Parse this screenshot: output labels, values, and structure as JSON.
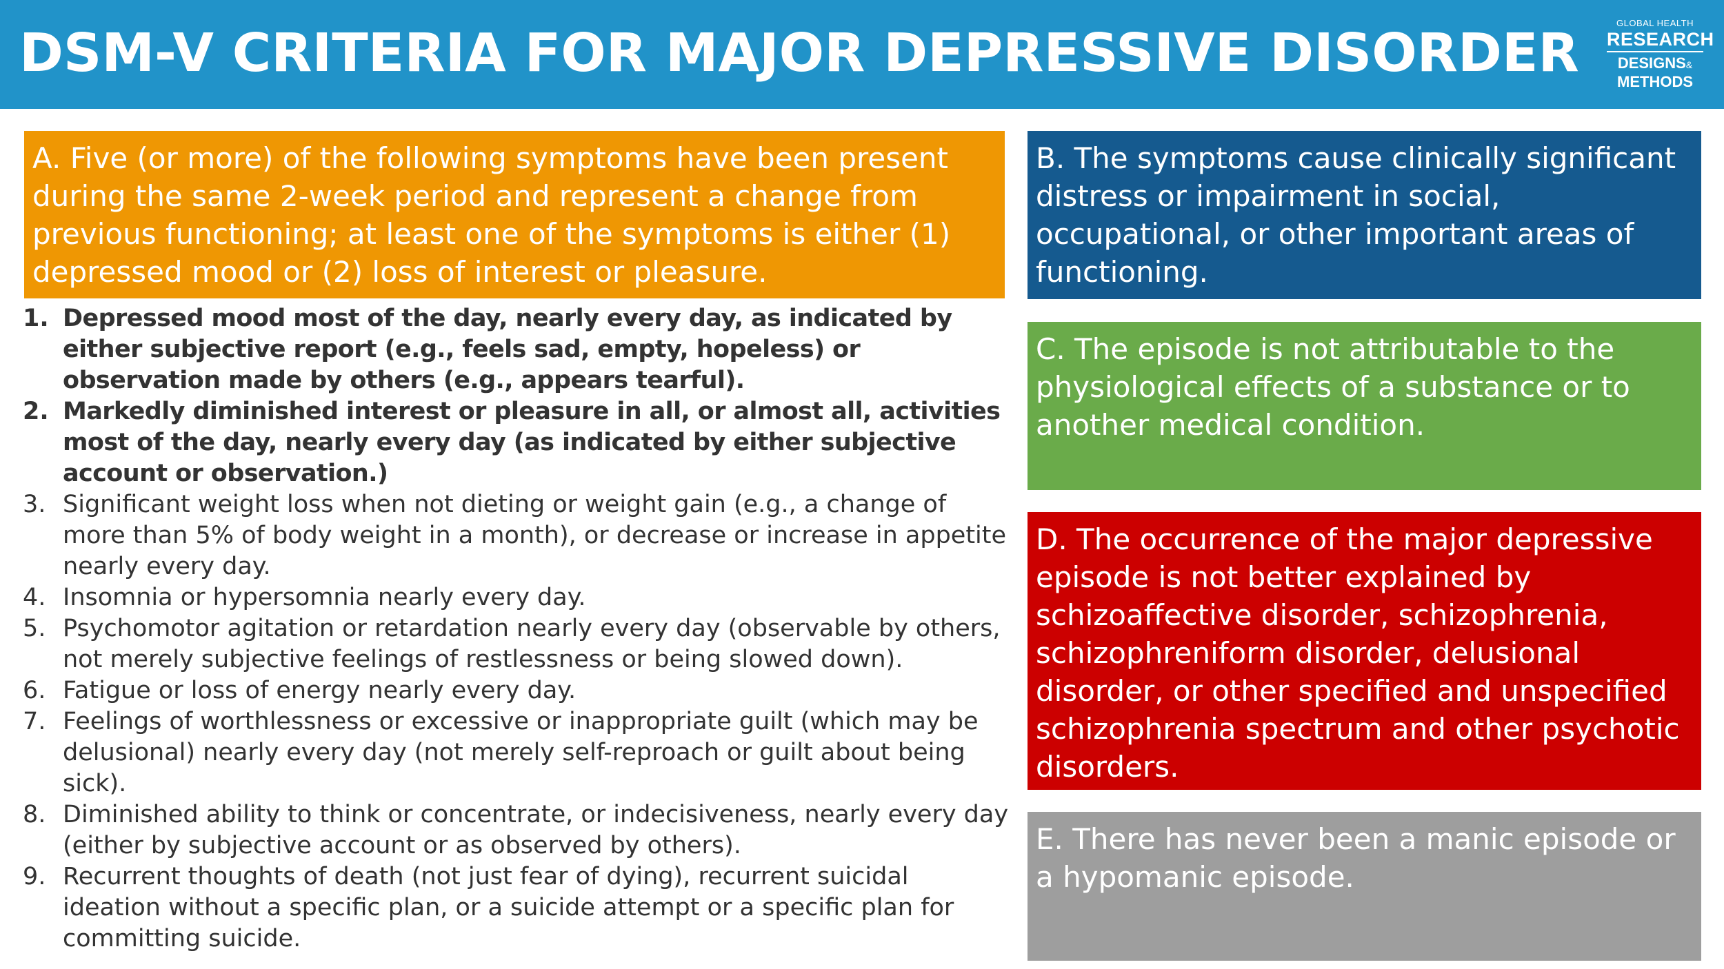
{
  "header": {
    "title": "DSM-V CRITERIA FOR MAJOR DEPRESSIVE DISORDER",
    "logo": {
      "line1": "GLOBAL HEALTH",
      "line2": "RESEARCH",
      "line3": "DESIGNS",
      "line3_suffix": "&",
      "line4": "METHODS"
    }
  },
  "criteria": {
    "a": "A. Five (or more) of the following symptoms have been present during the same 2-week period and represent a change from previous functioning; at least one of the symptoms is either (1) depressed mood or (2) loss of interest or pleasure.",
    "b": "B. The symptoms cause clinically significant distress or impairment in social, occupational, or other important areas of functioning.",
    "c": "C. The episode is not attributable to the physiological effects of a substance or to another medical condition.",
    "d": "D. The occurrence of the major depressive episode is not better explained by schizoaffective disorder, schizophrenia, schizophreniform disorder, delusional disorder, or other specified and unspecified schizophrenia spectrum and other psychotic disorders.",
    "e": "E. There has never been a manic episode or a hypomanic episode."
  },
  "colors": {
    "header": "#2193c9",
    "a": "#ef9703",
    "b": "#155a8f",
    "c": "#6aab4a",
    "d": "#cc0000",
    "e": "#9e9e9e"
  },
  "symptoms": [
    {
      "num": "1.",
      "text": "Depressed mood most of the day, nearly every day, as indicated by either subjective report (e.g., feels sad, empty, hopeless) or observation made by others (e.g., appears tearful)."
    },
    {
      "num": "2.",
      "text": "Markedly diminished interest or pleasure in all, or almost all, activities most of the day, nearly every day (as indicated by either subjective account or observation.)"
    },
    {
      "num": "3.",
      "text": "Significant weight loss when not dieting or weight gain (e.g., a change of more than 5% of body weight in a month), or decrease or increase in appetite nearly every day."
    },
    {
      "num": "4.",
      "text": "Insomnia or hypersomnia nearly every day."
    },
    {
      "num": "5.",
      "text": "Psychomotor agitation or retardation nearly every day (observable by others, not merely subjective feelings of restlessness or being slowed down)."
    },
    {
      "num": "6.",
      "text": "Fatigue or loss of energy nearly every day."
    },
    {
      "num": "7.",
      "text": "Feelings of worthlessness or excessive or inappropriate guilt (which may be delusional) nearly every day (not merely self-reproach or guilt about being sick)."
    },
    {
      "num": "8.",
      "text": "Diminished ability to think or concentrate, or indecisiveness, nearly every day (either by subjective account or as observed by others)."
    },
    {
      "num": "9.",
      "text": "Recurrent thoughts of death (not just fear of dying), recurrent suicidal ideation without a specific plan, or a suicide attempt or a specific plan for committing suicide."
    }
  ]
}
